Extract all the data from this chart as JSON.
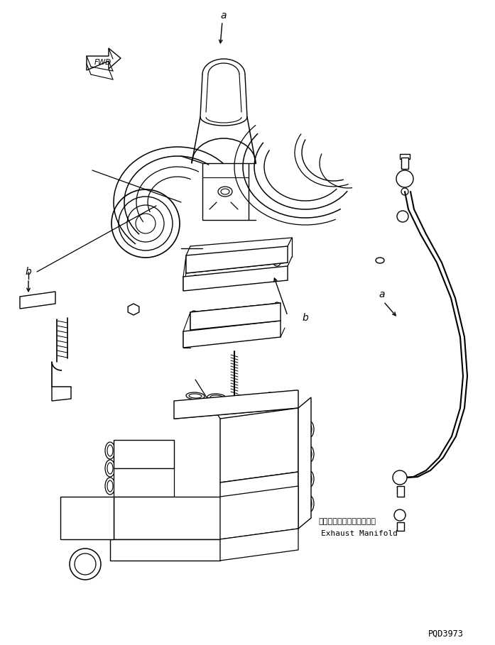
{
  "bg_color": "#ffffff",
  "line_color": "#000000",
  "fig_width": 6.97,
  "fig_height": 9.09,
  "dpi": 100,
  "label_a1": "a",
  "label_a2": "a",
  "label_b1": "b",
  "label_b2": "b",
  "fwd_text": "FWD",
  "japanese_label": "エキゾーストマニホールド",
  "english_label": "Exhaust Manifold",
  "part_number": "PQD3973"
}
